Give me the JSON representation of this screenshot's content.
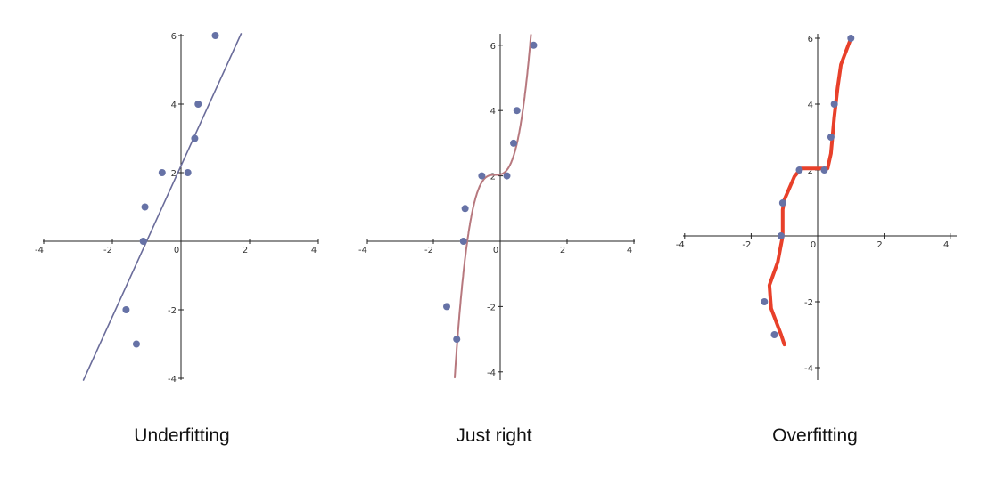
{
  "colors": {
    "point": "#6672a6",
    "axis": "#222222",
    "line_under": "#6a6c9a",
    "curve_right": "#b7787e",
    "curve_over": "#e8402a"
  },
  "captions": [
    "Underfitting",
    "Just right",
    "Overfitting"
  ],
  "chart_data": [
    {
      "type": "scatter",
      "title": "Underfitting",
      "xlim": [
        -4,
        4
      ],
      "ylim": [
        -4,
        6
      ],
      "x_ticks": [
        -4,
        -2,
        0,
        2,
        4
      ],
      "y_ticks": [
        -4,
        -2,
        2,
        4,
        6
      ],
      "points": [
        [
          -1.6,
          -2
        ],
        [
          -1.3,
          -3
        ],
        [
          -1.1,
          0
        ],
        [
          -1.05,
          1
        ],
        [
          -0.55,
          2
        ],
        [
          0.2,
          2
        ],
        [
          0.4,
          3
        ],
        [
          0.5,
          4
        ],
        [
          1.0,
          6
        ]
      ],
      "fit": {
        "kind": "linear",
        "slope": 2.2,
        "intercept": 2.2
      }
    },
    {
      "type": "scatter",
      "title": "Just right",
      "xlim": [
        -4,
        4
      ],
      "ylim": [
        -4,
        6
      ],
      "x_ticks": [
        -4,
        -2,
        0,
        2,
        4
      ],
      "y_ticks": [
        -4,
        -2,
        2,
        4,
        6
      ],
      "points": [
        [
          -1.6,
          -2
        ],
        [
          -1.3,
          -3
        ],
        [
          -1.1,
          0
        ],
        [
          -1.05,
          1
        ],
        [
          -0.55,
          2
        ],
        [
          0.2,
          2
        ],
        [
          0.4,
          3
        ],
        [
          0.5,
          4
        ],
        [
          1.0,
          6
        ]
      ],
      "fit": {
        "kind": "cubic",
        "a": 3.5,
        "center": -0.15,
        "intercept": 2.03
      }
    },
    {
      "type": "scatter",
      "title": "Overfitting",
      "xlim": [
        -4,
        4
      ],
      "ylim": [
        -4,
        6
      ],
      "x_ticks": [
        -4,
        -2,
        0,
        2,
        4
      ],
      "y_ticks": [
        -4,
        -2,
        2,
        4,
        6
      ],
      "points": [
        [
          -1.6,
          -2
        ],
        [
          -1.3,
          -3
        ],
        [
          -1.1,
          0
        ],
        [
          -1.05,
          1
        ],
        [
          -0.55,
          2
        ],
        [
          0.2,
          2
        ],
        [
          0.4,
          3
        ],
        [
          0.5,
          4
        ],
        [
          1.0,
          6
        ]
      ],
      "fit": {
        "kind": "interpolating",
        "path": [
          [
            -1.0,
            -3.3
          ],
          [
            -1.1,
            -3.0
          ],
          [
            -1.4,
            -2.2
          ],
          [
            -1.45,
            -1.5
          ],
          [
            -1.2,
            -0.8
          ],
          [
            -1.05,
            0.0
          ],
          [
            -1.05,
            0.8
          ],
          [
            -1.0,
            1.1
          ],
          [
            -0.7,
            1.8
          ],
          [
            -0.5,
            2.05
          ],
          [
            0.0,
            2.05
          ],
          [
            0.3,
            2.05
          ],
          [
            0.4,
            2.5
          ],
          [
            0.5,
            3.6
          ],
          [
            0.6,
            4.5
          ],
          [
            0.7,
            5.2
          ],
          [
            1.0,
            6.0
          ]
        ]
      }
    }
  ]
}
